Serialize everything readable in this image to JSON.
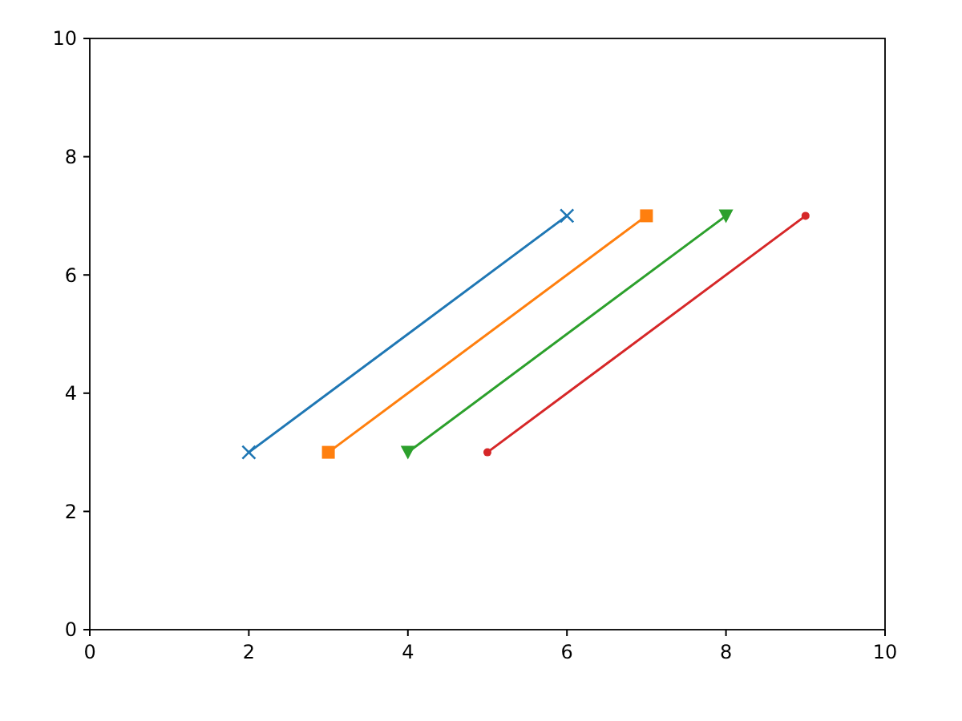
{
  "chart_data": {
    "type": "line",
    "xlim": [
      0,
      10
    ],
    "ylim": [
      0,
      10
    ],
    "xticks": [
      0,
      2,
      4,
      6,
      8,
      10
    ],
    "yticks": [
      0,
      2,
      4,
      6,
      8,
      10
    ],
    "grid": false,
    "line_style": "solid",
    "series": [
      {
        "color": "#1f77b4",
        "marker": "cross",
        "x": [
          2,
          6
        ],
        "values": [
          3,
          7
        ]
      },
      {
        "color": "#ff7f0e",
        "marker": "square",
        "x": [
          3,
          7
        ],
        "values": [
          3,
          7
        ]
      },
      {
        "color": "#2ca02c",
        "marker": "triangle",
        "x": [
          4,
          8
        ],
        "values": [
          3,
          7
        ]
      },
      {
        "color": "#d62728",
        "marker": "circle",
        "x": [
          5,
          9
        ],
        "values": [
          3,
          7
        ]
      }
    ]
  }
}
